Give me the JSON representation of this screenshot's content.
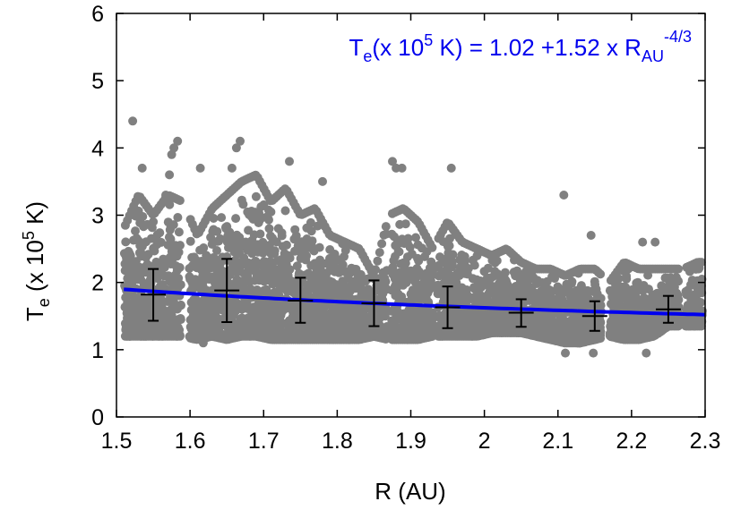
{
  "chart_data": {
    "type": "scatter",
    "title": "",
    "xlabel": "R (AU)",
    "ylabel": {
      "base": "T",
      "sub": "e",
      "rest": " (x 10",
      "sup": "5",
      "unit": " K)"
    },
    "xlim": [
      1.5,
      2.3
    ],
    "ylim": [
      0,
      6
    ],
    "x_ticks": [
      "1.5",
      "1.6",
      "1.7",
      "1.8",
      "1.9",
      "2",
      "2.1",
      "2.2",
      "2.3"
    ],
    "y_ticks": [
      "0",
      "1",
      "2",
      "3",
      "4",
      "5",
      "6"
    ],
    "grid": false,
    "annotation": {
      "color": "#0000ee",
      "parts": {
        "t": "T",
        "t_sub": "e",
        "open": "(x 10",
        "exp": "5",
        "mid": " K) = 1.02 +1.52 x R",
        "r_sub": "AU",
        "r_sup": "-4/3"
      }
    },
    "scatter_series": {
      "color": "#808080",
      "description": "dense cloud of measured T_e values between ~1.0 and ~4.4 (x 10^5 K)",
      "outliers": [
        {
          "x": 1.522,
          "y": 4.4
        },
        {
          "x": 1.535,
          "y": 3.7
        },
        {
          "x": 1.567,
          "y": 3.3
        },
        {
          "x": 1.572,
          "y": 3.6
        },
        {
          "x": 1.578,
          "y": 4.0
        },
        {
          "x": 1.583,
          "y": 4.1
        },
        {
          "x": 1.575,
          "y": 3.9
        },
        {
          "x": 1.614,
          "y": 3.7
        },
        {
          "x": 1.657,
          "y": 3.7
        },
        {
          "x": 1.663,
          "y": 4.0
        },
        {
          "x": 1.668,
          "y": 4.1
        },
        {
          "x": 1.735,
          "y": 3.8
        },
        {
          "x": 1.78,
          "y": 3.5
        },
        {
          "x": 1.875,
          "y": 3.8
        },
        {
          "x": 1.88,
          "y": 3.7
        },
        {
          "x": 1.888,
          "y": 3.7
        },
        {
          "x": 1.955,
          "y": 3.7
        },
        {
          "x": 2.108,
          "y": 3.3
        },
        {
          "x": 2.145,
          "y": 2.7
        },
        {
          "x": 2.215,
          "y": 2.6
        },
        {
          "x": 2.232,
          "y": 2.6
        },
        {
          "x": 1.618,
          "y": 1.1
        },
        {
          "x": 2.11,
          "y": 0.95
        },
        {
          "x": 2.148,
          "y": 0.95
        },
        {
          "x": 2.22,
          "y": 0.95
        }
      ]
    },
    "fit_series": {
      "color": "#0000ee",
      "a": 1.02,
      "b": 1.52,
      "exponent": -1.3333333
    },
    "binned_means": [
      {
        "x": 1.55,
        "y": 1.82,
        "yerr_low": 1.43,
        "yerr_high": 2.2,
        "xerr": 0.017
      },
      {
        "x": 1.65,
        "y": 1.88,
        "yerr_low": 1.41,
        "yerr_high": 2.35,
        "xerr": 0.017
      },
      {
        "x": 1.75,
        "y": 1.73,
        "yerr_low": 1.4,
        "yerr_high": 2.07,
        "xerr": 0.017
      },
      {
        "x": 1.85,
        "y": 1.69,
        "yerr_low": 1.35,
        "yerr_high": 2.03,
        "xerr": 0.017
      },
      {
        "x": 1.95,
        "y": 1.63,
        "yerr_low": 1.32,
        "yerr_high": 1.94,
        "xerr": 0.017
      },
      {
        "x": 2.05,
        "y": 1.55,
        "yerr_low": 1.34,
        "yerr_high": 1.75,
        "xerr": 0.017
      },
      {
        "x": 2.15,
        "y": 1.5,
        "yerr_low": 1.28,
        "yerr_high": 1.72,
        "xerr": 0.017
      },
      {
        "x": 2.25,
        "y": 1.6,
        "yerr_low": 1.4,
        "yerr_high": 1.8,
        "xerr": 0.017
      }
    ],
    "cloud_profile": {
      "x": [
        1.51,
        1.53,
        1.55,
        1.57,
        1.59,
        1.61,
        1.63,
        1.65,
        1.67,
        1.69,
        1.71,
        1.73,
        1.75,
        1.77,
        1.79,
        1.81,
        1.83,
        1.85,
        1.87,
        1.89,
        1.91,
        1.93,
        1.95,
        1.97,
        1.99,
        2.01,
        2.03,
        2.05,
        2.07,
        2.09,
        2.11,
        2.13,
        2.15,
        2.17,
        2.19,
        2.21,
        2.23,
        2.25,
        2.27,
        2.29
      ],
      "low": [
        1.2,
        1.2,
        1.2,
        1.2,
        1.2,
        1.15,
        1.2,
        1.15,
        1.2,
        1.2,
        1.15,
        1.15,
        1.15,
        1.15,
        1.15,
        1.15,
        1.15,
        1.2,
        1.15,
        1.15,
        1.15,
        1.2,
        1.2,
        1.2,
        1.2,
        1.25,
        1.25,
        1.25,
        1.2,
        1.15,
        1.1,
        1.1,
        1.15,
        1.2,
        1.15,
        1.15,
        1.2,
        1.35,
        1.35,
        1.35
      ],
      "high": [
        2.8,
        3.3,
        3.0,
        3.3,
        3.2,
        2.7,
        3.1,
        3.3,
        3.5,
        3.6,
        3.2,
        3.4,
        3.0,
        3.1,
        2.7,
        2.6,
        2.5,
        2.1,
        3.0,
        3.1,
        2.9,
        2.5,
        2.9,
        2.6,
        2.5,
        2.4,
        2.5,
        2.3,
        2.2,
        2.2,
        2.1,
        2.2,
        2.2,
        2.0,
        2.3,
        2.2,
        2.2,
        2.2,
        2.2,
        2.3
      ],
      "gaps": [
        [
          1.588,
          1.6
        ],
        [
          1.868,
          1.874
        ],
        [
          1.93,
          1.936
        ],
        [
          2.16,
          2.17
        ],
        [
          2.265,
          2.272
        ]
      ]
    }
  }
}
